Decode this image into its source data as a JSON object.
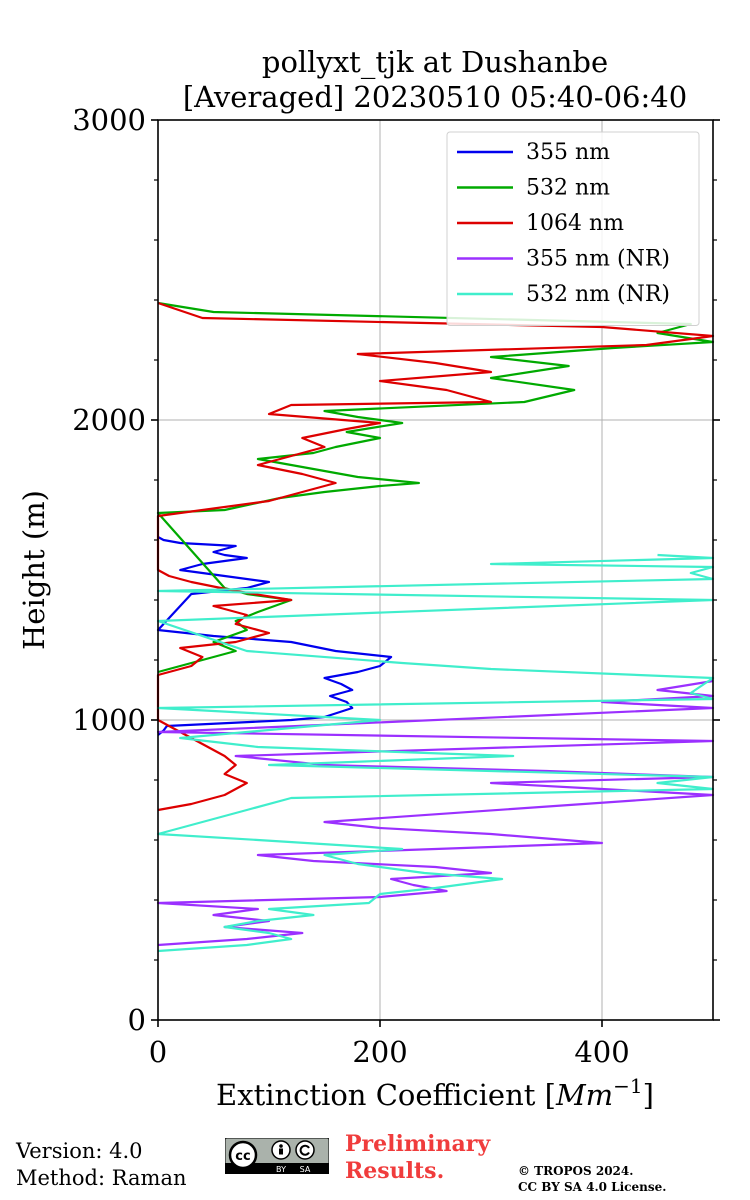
{
  "chart_data": {
    "type": "line",
    "title": [
      "pollyxt_tjk at Dushanbe",
      "[Averaged] 20230510 05:40-06:40"
    ],
    "xlabel": "Extinction Coefficient [Mm^-1]",
    "xlabel_main": "Extinction Coefficient [",
    "xlabel_unit": "Mm",
    "xlabel_exp": "−1",
    "xlabel_close": "]",
    "ylabel": "Height (m)",
    "xlim": [
      0,
      500
    ],
    "ylim": [
      0,
      3000
    ],
    "xticks": [
      0,
      200,
      400
    ],
    "xtick_labels": [
      "0",
      "200",
      "400"
    ],
    "yticks": [
      0,
      1000,
      2000,
      3000
    ],
    "ytick_labels": [
      "0",
      "1000",
      "2000",
      "3000"
    ],
    "grid": true,
    "legend_position": "top-right",
    "series": [
      {
        "name": "355 nm",
        "color": "#0000ee",
        "points": [
          [
            0,
            950
          ],
          [
            5,
            965
          ],
          [
            8,
            980
          ],
          [
            120,
            1000
          ],
          [
            150,
            1010
          ],
          [
            175,
            1040
          ],
          [
            170,
            1060
          ],
          [
            155,
            1080
          ],
          [
            175,
            1100
          ],
          [
            165,
            1120
          ],
          [
            150,
            1140
          ],
          [
            180,
            1160
          ],
          [
            200,
            1180
          ],
          [
            210,
            1210
          ],
          [
            160,
            1230
          ],
          [
            120,
            1260
          ],
          [
            50,
            1280
          ],
          [
            0,
            1300
          ],
          [
            30,
            1420
          ],
          [
            80,
            1440
          ],
          [
            100,
            1460
          ],
          [
            60,
            1480
          ],
          [
            20,
            1500
          ],
          [
            40,
            1520
          ],
          [
            80,
            1540
          ],
          [
            60,
            1550
          ],
          [
            50,
            1560
          ],
          [
            70,
            1580
          ],
          [
            20,
            1590
          ],
          [
            5,
            1600
          ],
          [
            0,
            1610
          ]
        ]
      },
      {
        "name": "532 nm",
        "color": "#00aa00",
        "points": [
          [
            0,
            1160
          ],
          [
            30,
            1190
          ],
          [
            70,
            1230
          ],
          [
            50,
            1260
          ],
          [
            80,
            1300
          ],
          [
            70,
            1330
          ],
          [
            90,
            1360
          ],
          [
            120,
            1400
          ],
          [
            80,
            1420
          ],
          [
            60,
            1440
          ],
          [
            0,
            1690
          ],
          [
            60,
            1700
          ],
          [
            110,
            1740
          ],
          [
            150,
            1760
          ],
          [
            200,
            1780
          ],
          [
            235,
            1790
          ],
          [
            180,
            1810
          ],
          [
            150,
            1830
          ],
          [
            120,
            1850
          ],
          [
            90,
            1870
          ],
          [
            140,
            1890
          ],
          [
            160,
            1910
          ],
          [
            200,
            1940
          ],
          [
            170,
            1960
          ],
          [
            220,
            1990
          ],
          [
            180,
            2010
          ],
          [
            150,
            2030
          ],
          [
            330,
            2060
          ],
          [
            375,
            2100
          ],
          [
            300,
            2140
          ],
          [
            370,
            2180
          ],
          [
            300,
            2210
          ],
          [
            410,
            2240
          ],
          [
            500,
            2260
          ],
          [
            450,
            2290
          ],
          [
            480,
            2320
          ],
          [
            50,
            2360
          ],
          [
            0,
            2390
          ]
        ]
      },
      {
        "name": "1064 nm",
        "color": "#dd0000",
        "points": [
          [
            0,
            700
          ],
          [
            30,
            720
          ],
          [
            60,
            750
          ],
          [
            70,
            770
          ],
          [
            80,
            790
          ],
          [
            60,
            820
          ],
          [
            70,
            850
          ],
          [
            60,
            880
          ],
          [
            50,
            900
          ],
          [
            0,
            1000
          ],
          [
            0,
            1150
          ],
          [
            30,
            1180
          ],
          [
            40,
            1210
          ],
          [
            20,
            1240
          ],
          [
            70,
            1260
          ],
          [
            100,
            1290
          ],
          [
            70,
            1320
          ],
          [
            80,
            1350
          ],
          [
            50,
            1380
          ],
          [
            120,
            1400
          ],
          [
            70,
            1430
          ],
          [
            30,
            1460
          ],
          [
            10,
            1480
          ],
          [
            0,
            1500
          ],
          [
            0,
            1680
          ],
          [
            40,
            1700
          ],
          [
            100,
            1730
          ],
          [
            130,
            1760
          ],
          [
            160,
            1790
          ],
          [
            130,
            1820
          ],
          [
            90,
            1850
          ],
          [
            120,
            1880
          ],
          [
            150,
            1910
          ],
          [
            130,
            1940
          ],
          [
            170,
            1970
          ],
          [
            200,
            1990
          ],
          [
            100,
            2020
          ],
          [
            120,
            2050
          ],
          [
            300,
            2060
          ],
          [
            260,
            2100
          ],
          [
            200,
            2130
          ],
          [
            300,
            2160
          ],
          [
            250,
            2190
          ],
          [
            180,
            2220
          ],
          [
            440,
            2250
          ],
          [
            500,
            2280
          ],
          [
            400,
            2310
          ],
          [
            40,
            2340
          ],
          [
            0,
            2390
          ]
        ]
      },
      {
        "name": "355 nm (NR)",
        "color": "#9b30ff",
        "points": [
          [
            0,
            250
          ],
          [
            80,
            270
          ],
          [
            130,
            290
          ],
          [
            60,
            310
          ],
          [
            100,
            330
          ],
          [
            50,
            350
          ],
          [
            90,
            370
          ],
          [
            0,
            390
          ],
          [
            200,
            410
          ],
          [
            260,
            430
          ],
          [
            230,
            450
          ],
          [
            210,
            470
          ],
          [
            300,
            490
          ],
          [
            250,
            510
          ],
          [
            140,
            530
          ],
          [
            90,
            550
          ],
          [
            250,
            570
          ],
          [
            400,
            590
          ],
          [
            300,
            620
          ],
          [
            200,
            640
          ],
          [
            150,
            660
          ],
          [
            500,
            750
          ],
          [
            400,
            770
          ],
          [
            300,
            790
          ],
          [
            500,
            810
          ],
          [
            350,
            830
          ],
          [
            150,
            850
          ],
          [
            70,
            880
          ],
          [
            500,
            930
          ],
          [
            0,
            960
          ],
          [
            500,
            1040
          ],
          [
            400,
            1060
          ],
          [
            500,
            1080
          ],
          [
            450,
            1100
          ],
          [
            500,
            1130
          ]
        ]
      },
      {
        "name": "532 nm (NR)",
        "color": "#40eecc",
        "points": [
          [
            0,
            230
          ],
          [
            80,
            250
          ],
          [
            120,
            270
          ],
          [
            100,
            290
          ],
          [
            60,
            310
          ],
          [
            90,
            330
          ],
          [
            140,
            350
          ],
          [
            100,
            370
          ],
          [
            190,
            390
          ],
          [
            200,
            420
          ],
          [
            250,
            440
          ],
          [
            310,
            470
          ],
          [
            240,
            490
          ],
          [
            180,
            520
          ],
          [
            150,
            550
          ],
          [
            220,
            570
          ],
          [
            90,
            600
          ],
          [
            0,
            620
          ],
          [
            80,
            700
          ],
          [
            120,
            740
          ],
          [
            500,
            770
          ],
          [
            450,
            790
          ],
          [
            500,
            810
          ],
          [
            300,
            830
          ],
          [
            100,
            850
          ],
          [
            320,
            880
          ],
          [
            90,
            910
          ],
          [
            20,
            940
          ],
          [
            200,
            1000
          ],
          [
            0,
            1040
          ],
          [
            500,
            1070
          ],
          [
            480,
            1090
          ],
          [
            500,
            1140
          ],
          [
            300,
            1170
          ],
          [
            220,
            1190
          ],
          [
            80,
            1230
          ],
          [
            0,
            1330
          ],
          [
            500,
            1400
          ],
          [
            0,
            1430
          ],
          [
            500,
            1470
          ],
          [
            480,
            1490
          ],
          [
            500,
            1510
          ],
          [
            300,
            1520
          ],
          [
            500,
            1540
          ],
          [
            450,
            1550
          ]
        ]
      }
    ]
  },
  "footer": {
    "version": "Version: 4.0",
    "method": "Method: Raman",
    "preliminary_line1": "Preliminary",
    "preliminary_line2": "Results.",
    "copyright_line1": "© TROPOS 2024.",
    "copyright_line2": "CC BY SA 4.0 License.",
    "badge_cc": "cc",
    "badge_by": "BY",
    "badge_sa": "SA"
  }
}
